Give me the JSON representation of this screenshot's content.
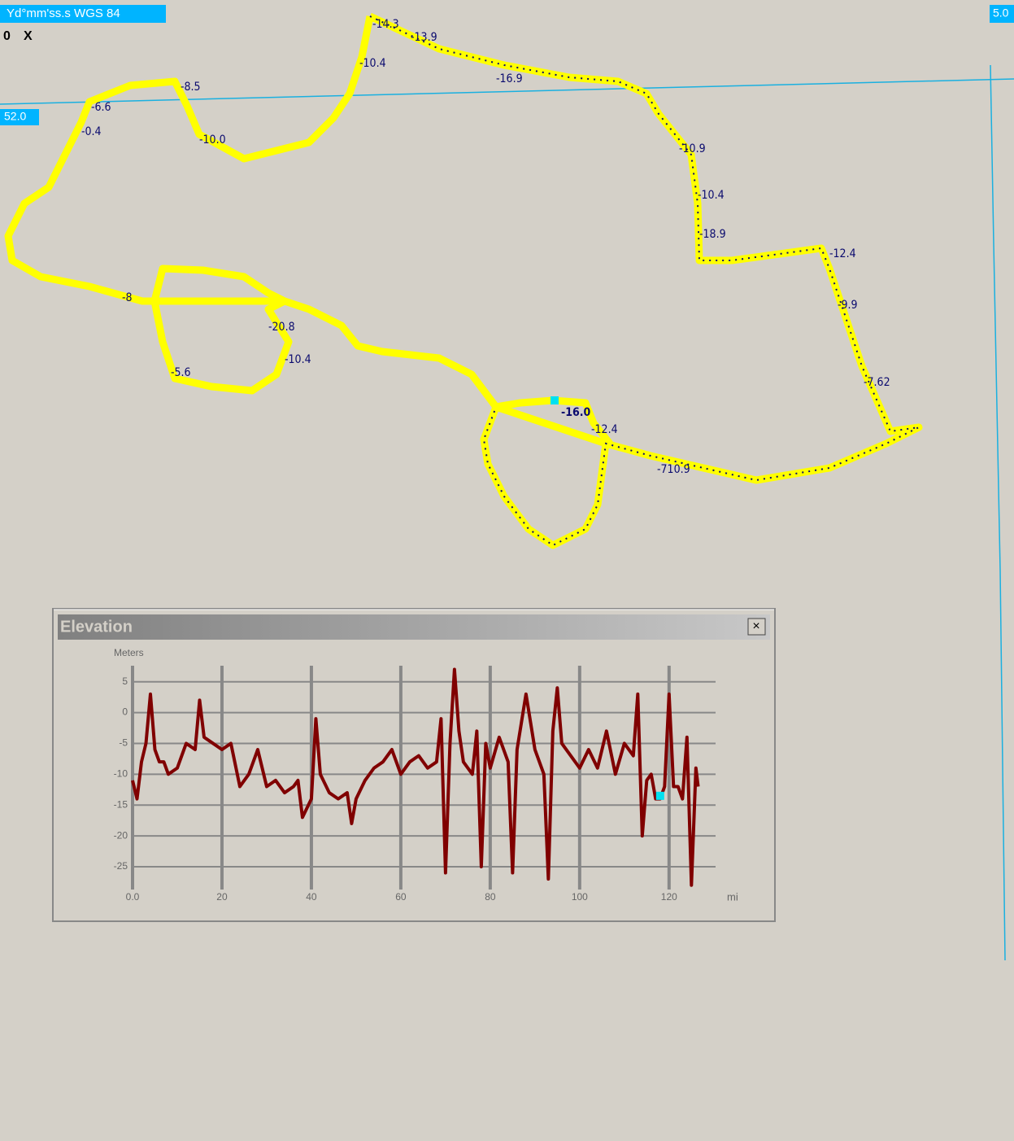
{
  "map": {
    "coord_label": "Yd°mm'ss.s WGS 84",
    "axis_zero": "0",
    "axis_x": "X",
    "grid_left_label": "52.0",
    "grid_right_label": "5.0",
    "depth_labels": [
      "-14.3",
      "-13.9",
      "-10.4",
      "-8.5",
      "-10.0",
      "-6.6",
      "-0.4",
      "-16.9",
      "-10.9",
      "-10.4",
      "-18.9",
      "-12.4",
      "-9.9",
      "-7.62",
      "-12.4",
      "-710.9",
      "-20.8",
      "-10.4",
      "-5.6",
      "-8",
      "-16.0"
    ]
  },
  "elevation_window": {
    "title": "Elevation",
    "close": "×"
  },
  "chart_data": {
    "type": "line",
    "y_label": "Meters",
    "x_label": "mi",
    "x": [
      0,
      1,
      2,
      3,
      4,
      5,
      6,
      7,
      8,
      10,
      12,
      14,
      15,
      16,
      18,
      20,
      22,
      24,
      26,
      28,
      30,
      32,
      34,
      36,
      37,
      38,
      40,
      41,
      42,
      44,
      46,
      48,
      49,
      50,
      52,
      54,
      56,
      58,
      60,
      62,
      64,
      66,
      68,
      69,
      70,
      71,
      72,
      73,
      74,
      76,
      77,
      78,
      79,
      80,
      82,
      84,
      85,
      86,
      88,
      90,
      92,
      93,
      94,
      95,
      96,
      98,
      100,
      102,
      104,
      106,
      108,
      110,
      112,
      113,
      114,
      115,
      116,
      117,
      118,
      119,
      120,
      121,
      122,
      123,
      124,
      125,
      126,
      126.5
    ],
    "series": [
      {
        "name": "Elevation",
        "color": "#800000",
        "values": [
          -11,
          -14,
          -8,
          -5,
          3,
          -6,
          -8,
          -8,
          -10,
          -9,
          -5,
          -6,
          2,
          -4,
          -5,
          -6,
          -5,
          -12,
          -10,
          -6,
          -12,
          -11,
          -13,
          -12,
          -11,
          -17,
          -14,
          -1,
          -10,
          -13,
          -14,
          -13,
          -18,
          -14,
          -11,
          -9,
          -8,
          -6,
          -10,
          -8,
          -7,
          -9,
          -8,
          -1,
          -26,
          -5,
          7,
          -3,
          -8,
          -10,
          -3,
          -25,
          -5,
          -9,
          -4,
          -8,
          -26,
          -6,
          3,
          -6,
          -10,
          -27,
          -3,
          4,
          -5,
          -7,
          -9,
          -6,
          -9,
          -3,
          -10,
          -5,
          -7,
          3,
          -20,
          -11,
          -10,
          -14,
          -14,
          -12,
          3,
          -12,
          -12,
          -14,
          -4,
          -28,
          -9,
          -12
        ]
      }
    ],
    "cursor": {
      "x": 118,
      "y": -13.5,
      "color": "#00e0f0"
    },
    "xlim": [
      0,
      130.4
    ],
    "ylim": [
      -28.7,
      7.6
    ],
    "xticks": [
      {
        "value": 0,
        "label": "0.0"
      },
      20,
      40,
      60,
      80,
      100,
      120
    ],
    "yticks": [
      5,
      0,
      -5,
      -10,
      -15,
      -20,
      -25
    ],
    "grid": true
  }
}
